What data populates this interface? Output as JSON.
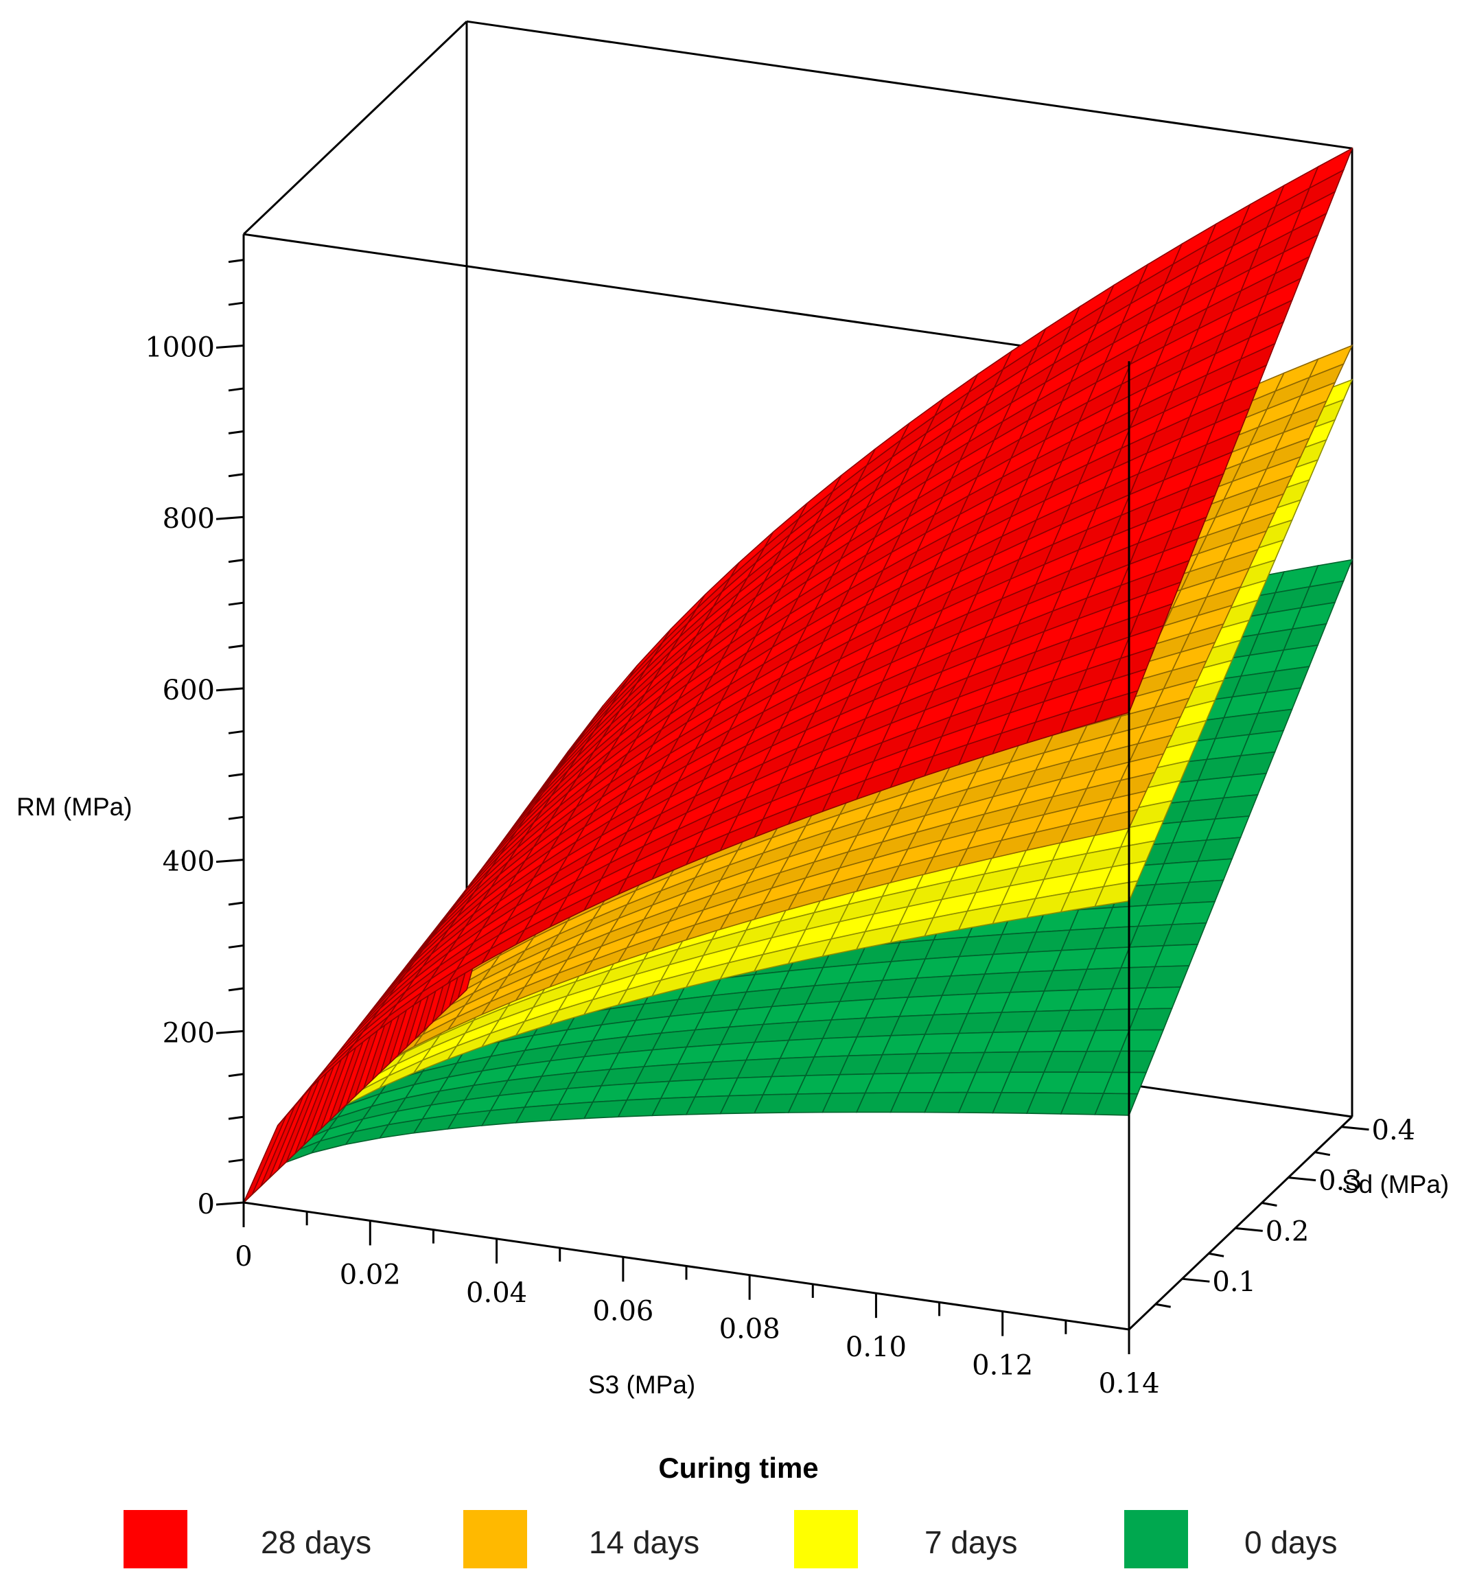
{
  "chart_data": {
    "type": "surface3d",
    "axes": {
      "x": {
        "label": "S3 (MPa)",
        "range": [
          0,
          0.14
        ],
        "ticks": [
          "0",
          "0.02",
          "0.04",
          "0.06",
          "0.08",
          "0.10",
          "0.12",
          "0.14"
        ]
      },
      "y": {
        "label": "Sd (MPa)",
        "range": [
          0,
          0.42
        ],
        "ticks": [
          "0.1",
          "0.2",
          "0.3",
          "0.4"
        ]
      },
      "z": {
        "label": "RM (MPa)",
        "range": [
          0,
          1130
        ],
        "ticks": [
          "0",
          "200",
          "400",
          "600",
          "800",
          "1000"
        ]
      }
    },
    "legend": {
      "title": "Curing time",
      "placement": "bottom",
      "items": [
        {
          "label": "28 days",
          "color": "#ff0000"
        },
        {
          "label": "14 days",
          "color": "#ffb900"
        },
        {
          "label": "7 days",
          "color": "#ffff00"
        },
        {
          "label": "0 days",
          "color": "#00b050"
        }
      ]
    },
    "series": [
      {
        "name": "28 days",
        "color": "#ff0000",
        "corner_values": {
          "s3_max_sd_min": 720,
          "s3_max_sd_max": 1130,
          "s3_min_sd_max": 0
        }
      },
      {
        "name": "14 days",
        "color": "#ffb900",
        "corner_values": {
          "s3_max_sd_min": 585,
          "s3_max_sd_max": 900,
          "s3_min_sd_max": 0
        }
      },
      {
        "name": "7 days",
        "color": "#ffff00",
        "corner_values": {
          "s3_max_sd_min": 500,
          "s3_max_sd_max": 860,
          "s3_min_sd_max": 0
        }
      },
      {
        "name": "0 days",
        "color": "#00b050",
        "corner_values": {
          "s3_max_sd_min": 250,
          "s3_max_sd_max": 650,
          "s3_min_sd_max": 0
        }
      }
    ],
    "grid": false
  }
}
